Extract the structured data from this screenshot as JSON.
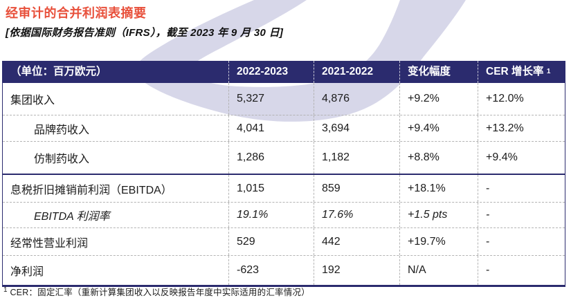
{
  "page": {
    "title": "经审计的合并利润表摘要",
    "subtitle": "[依据国际财务报告准则（IFRS），截至 2023 年 9 月 30 日]",
    "footnote_superscript": "1",
    "footnote_text": " CER：固定汇率（重新计算集团收入以反映报告年度中实际适用的汇率情况）"
  },
  "colors": {
    "accent_red": "#E8503B",
    "header_navy": "#2B2B6E",
    "decoration_lavender": "#D7D7E9",
    "grid_dash_gray": "#B3B3B3"
  },
  "table": {
    "columns": [
      "（单位：百万欧元）",
      "2022-2023",
      "2021-2022",
      "变化幅度",
      "CER 增长率"
    ],
    "cer_superscript": "1",
    "rows": [
      {
        "label": "集团收入",
        "v1": "5,327",
        "v2": "4,876",
        "v3": "+9.2%",
        "v4": "+12.0%"
      },
      {
        "label": "品牌药收入",
        "v1": "4,041",
        "v2": "3,694",
        "v3": "+9.4%",
        "v4": "+13.2%",
        "indent": true
      },
      {
        "label": "仿制药收入",
        "v1": "1,286",
        "v2": "1,182",
        "v3": "+8.8%",
        "v4": "+9.4%",
        "indent": true
      },
      {
        "label": "息税折旧摊销前利润（EBITDA）",
        "v1": "1,015",
        "v2": "859",
        "v3": "+18.1%",
        "v4": "-",
        "section": true
      },
      {
        "label": "EBITDA 利润率",
        "v1": "19.1%",
        "v2": "17.6%",
        "v3": "+1.5 pts",
        "v4": "-",
        "indent": true,
        "italic": true
      },
      {
        "label": "经常性营业利润",
        "v1": "529",
        "v2": "442",
        "v3": "+19.7%",
        "v4": "-"
      },
      {
        "label": "净利润",
        "v1": "-623",
        "v2": "192",
        "v3": "N/A",
        "v4": "-"
      }
    ]
  }
}
